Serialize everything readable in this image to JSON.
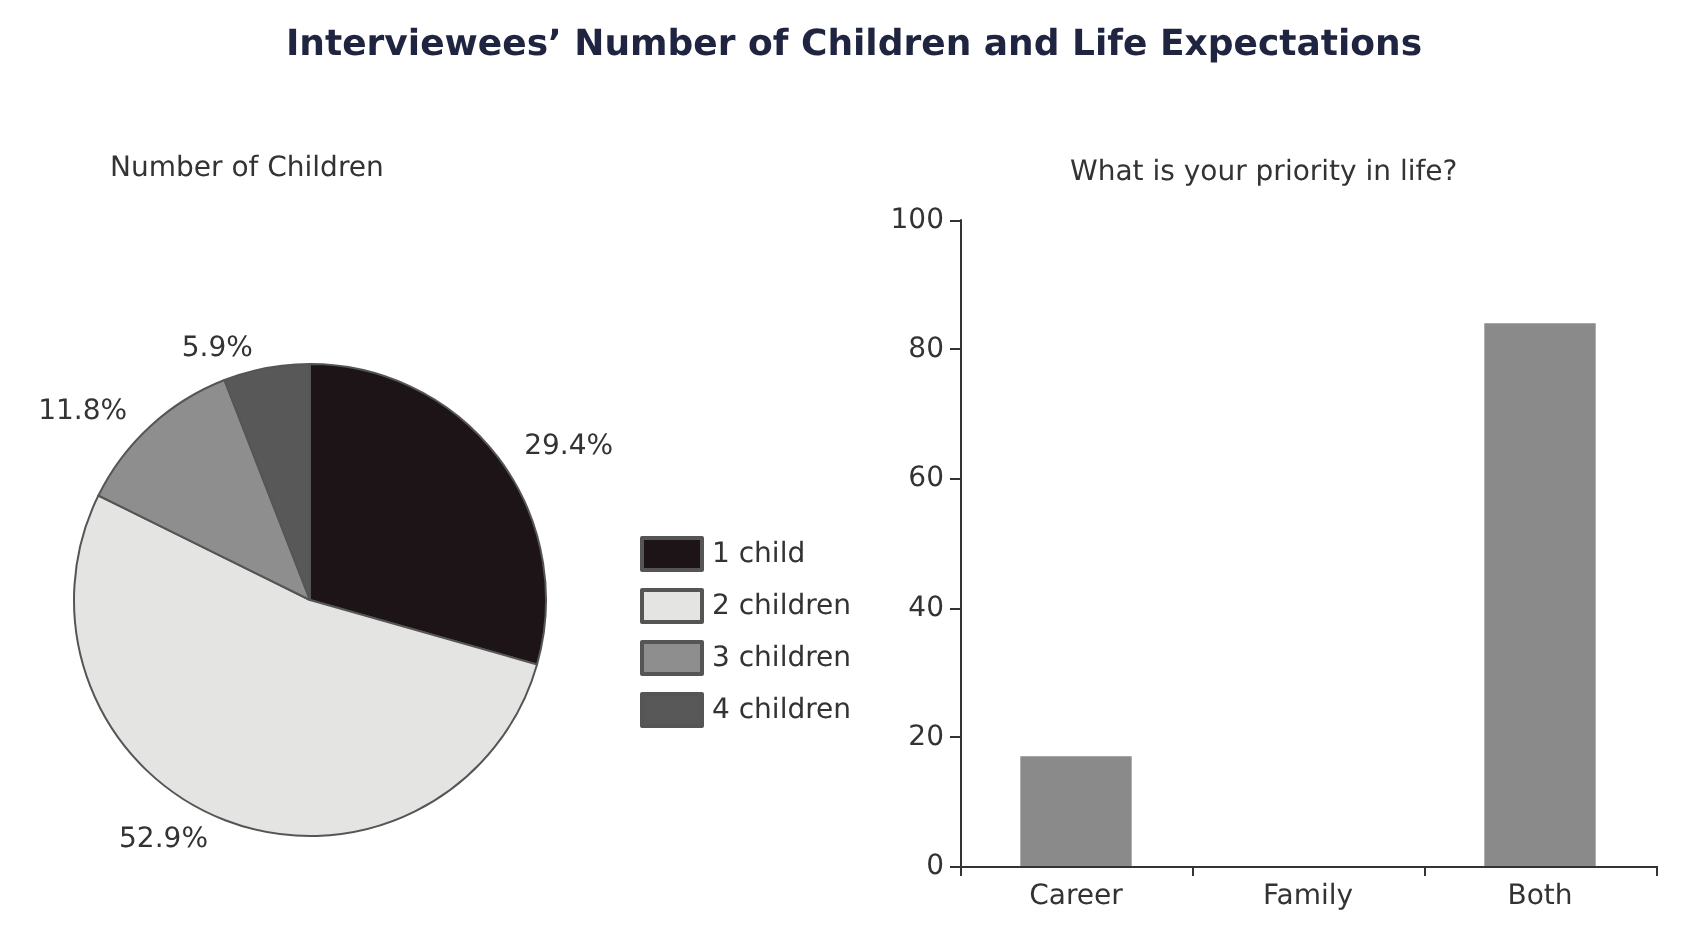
{
  "chart_data": [
    {
      "type": "pie",
      "title": "Interviewees’ Number of Children and Life Expectations",
      "subtitle": "Number of Children",
      "categories": [
        "1 child",
        "2 children",
        "3 children",
        "4 children"
      ],
      "values": [
        29.4,
        52.9,
        11.8,
        5.9
      ],
      "value_labels": [
        "29.4%",
        "52.9%",
        "11.8%",
        "5.9%"
      ],
      "colors": [
        "#1c1416",
        "#e4e4e2",
        "#8e8e8e",
        "#585858"
      ],
      "legend": "right"
    },
    {
      "type": "bar",
      "title": "What is your priority in life?",
      "categories": [
        "Career",
        "Family",
        "Both"
      ],
      "values": [
        17,
        0,
        84
      ],
      "color": "#8a8a8a",
      "ylim": [
        0,
        100
      ],
      "yticks": [
        0,
        20,
        40,
        60,
        80,
        100
      ],
      "grid": false
    }
  ]
}
